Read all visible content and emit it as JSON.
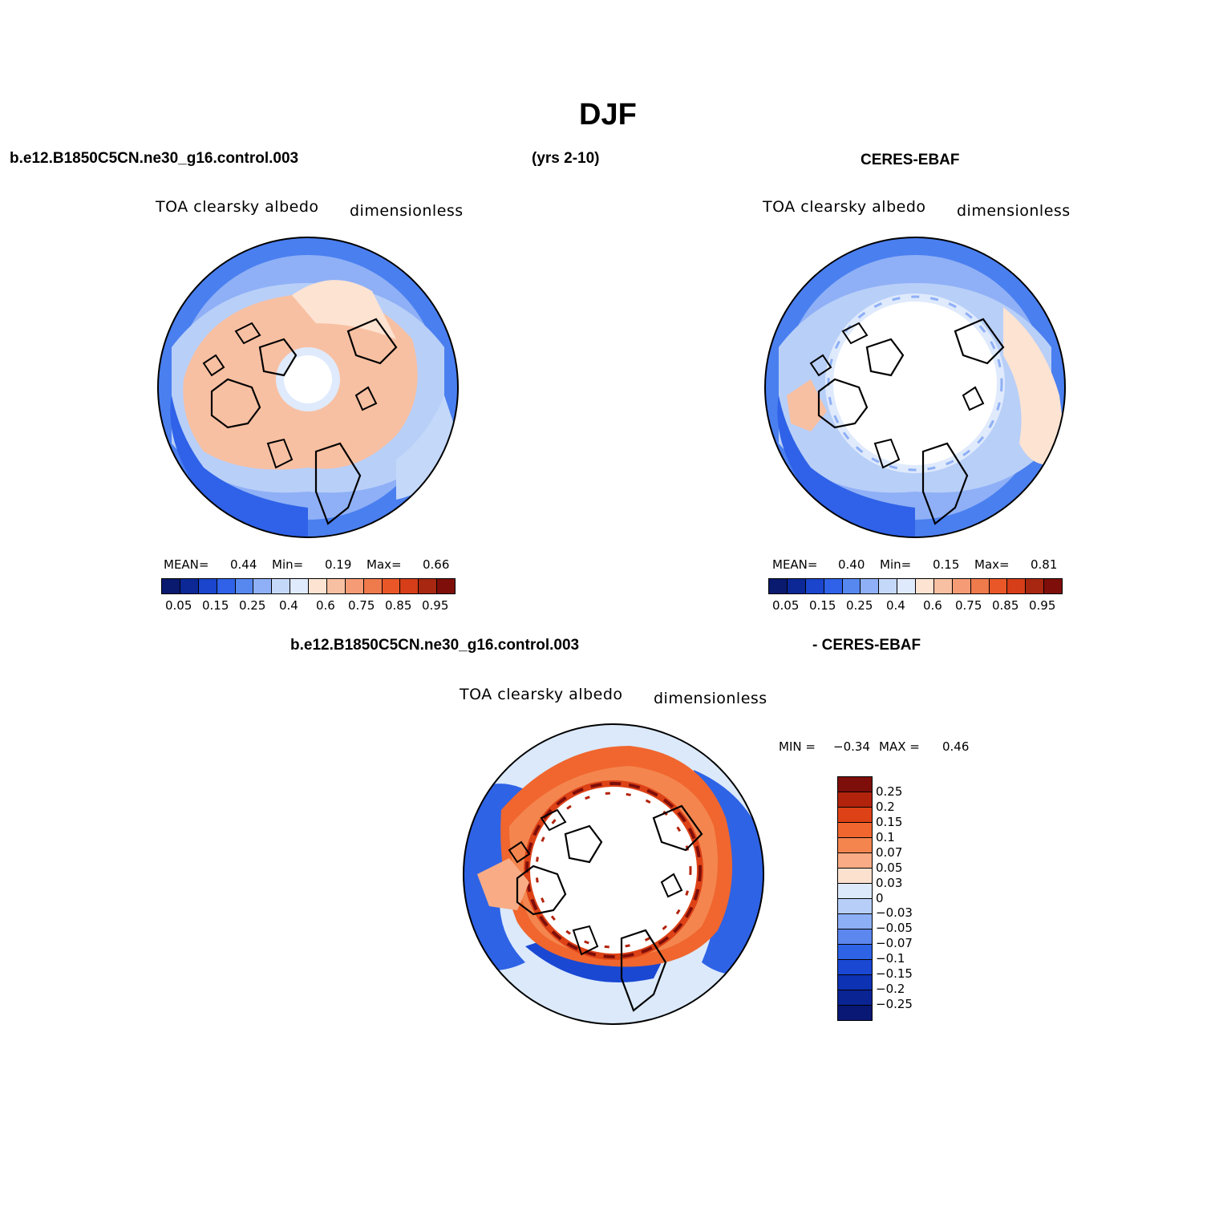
{
  "title": "DJF",
  "top_left_header": "b.e12.B1850C5CN.ne30_g16.control.003",
  "years_label": "(yrs 2-10)",
  "top_right_header": "CERES-EBAF",
  "bottom_header_left": "b.e12.B1850C5CN.ne30_g16.control.003",
  "bottom_header_right": "- CERES-EBAF",
  "panels": [
    {
      "name": "model",
      "variable": "TOA clearsky albedo",
      "units": "dimensionless",
      "mean_label": "MEAN=",
      "mean": "0.44",
      "min_label": "Min=",
      "min": "0.19",
      "max_label": "Max=",
      "max": "0.66"
    },
    {
      "name": "obs",
      "variable": "TOA clearsky albedo",
      "units": "dimensionless",
      "mean_label": "MEAN=",
      "mean": "0.40",
      "min_label": "Min=",
      "min": "0.15",
      "max_label": "Max=",
      "max": "0.81"
    }
  ],
  "diff_panel": {
    "variable": "TOA clearsky albedo",
    "units": "dimensionless",
    "min_label": "MIN =",
    "min": "−0.34",
    "max_label": "MAX =",
    "max": "0.46"
  },
  "colorbar_abs": {
    "colors": [
      "#0a1a6e",
      "#0b2896",
      "#1a45cc",
      "#2f62e8",
      "#5688f0",
      "#8fb0f6",
      "#c4d8fa",
      "#dfeafc",
      "#fde3d2",
      "#f8c0a2",
      "#f59c76",
      "#ef7a4c",
      "#e95728",
      "#d53e18",
      "#a82710",
      "#7e0e0a"
    ],
    "labels": [
      "0.05",
      "0.15",
      "0.25",
      "0.4",
      "0.6",
      "0.75",
      "0.85",
      "0.95"
    ]
  },
  "colorbar_diff": {
    "colors": [
      "#7e0e0a",
      "#b2230c",
      "#dd4216",
      "#f0662e",
      "#f4854e",
      "#f8ab84",
      "#fde1cf",
      "#dbe9fb",
      "#b7cff8",
      "#8daff6",
      "#5b87ef",
      "#2e63e6",
      "#1a48d3",
      "#0d32b3",
      "#0a2494",
      "#081874"
    ],
    "labels": [
      "0.25",
      "0.2",
      "0.15",
      "0.1",
      "0.07",
      "0.05",
      "0.03",
      "0",
      "−0.03",
      "−0.05",
      "−0.07",
      "−0.1",
      "−0.15",
      "−0.2",
      "−0.25"
    ]
  }
}
